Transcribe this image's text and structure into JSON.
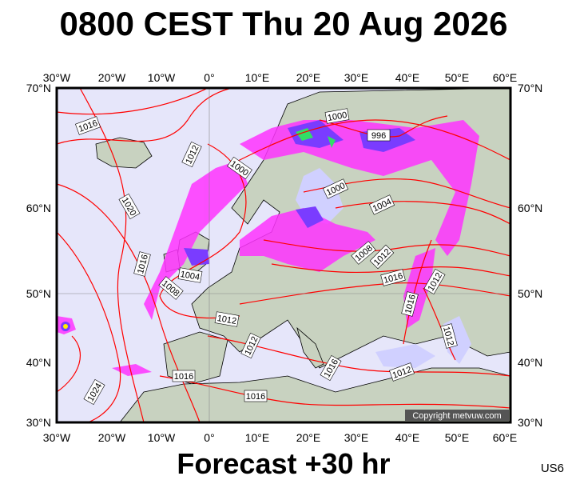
{
  "title": "0800 CEST Thu 20 Aug 2026",
  "longitudes": [
    "30°W",
    "20°W",
    "10°W",
    "0°",
    "10°E",
    "20°E",
    "30°E",
    "40°E",
    "50°E",
    "60°E"
  ],
  "latitudes": [
    "70°N",
    "60°N",
    "50°N",
    "40°N",
    "30°N"
  ],
  "isobar_labels": [
    "1016",
    "1012",
    "1000",
    "1020",
    "1016",
    "1004",
    "1008",
    "1000",
    "996",
    "1000",
    "1004",
    "1008",
    "1012",
    "1016",
    "1012",
    "1016",
    "1012",
    "1012",
    "1012",
    "1016",
    "1012",
    "1016",
    "1024",
    "1016"
  ],
  "copyright": "Copyright metvuw.com",
  "forecast": "Forecast +30 hr",
  "model": "US6"
}
